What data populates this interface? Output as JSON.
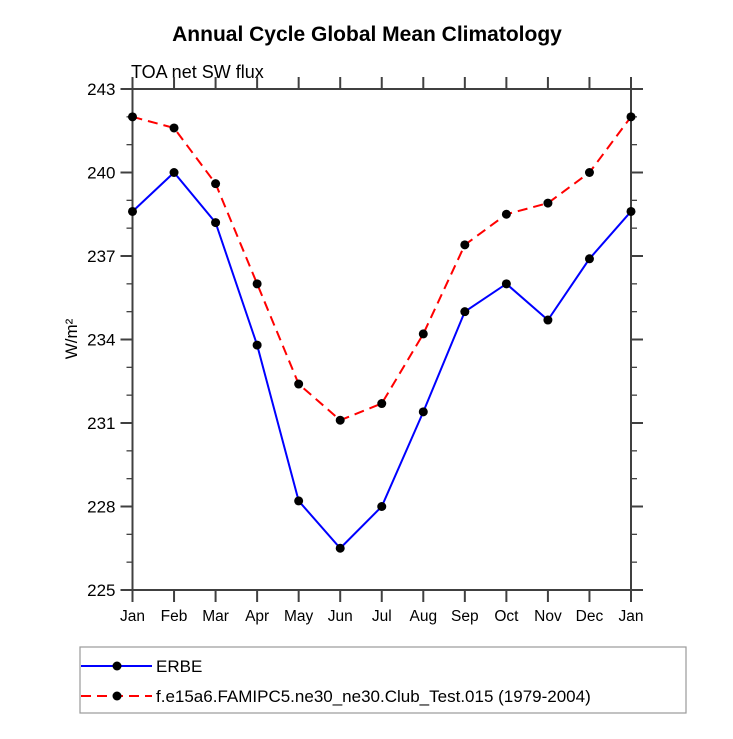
{
  "chart_data": {
    "type": "line",
    "title": "Annual Cycle Global Mean Climatology",
    "subtitle": "TOA net SW flux",
    "ylabel": "W/m²",
    "xlabel": "",
    "categories": [
      "Jan",
      "Feb",
      "Mar",
      "Apr",
      "May",
      "Jun",
      "Jul",
      "Aug",
      "Sep",
      "Oct",
      "Nov",
      "Dec",
      "Jan"
    ],
    "ylim": [
      225,
      243
    ],
    "yticks": [
      225,
      228,
      231,
      234,
      237,
      240,
      243
    ],
    "ytick_minor_step": 1,
    "grid": false,
    "legend_position": "bottom-left",
    "axis_color": "#404040",
    "marker_color": "#000000",
    "series": [
      {
        "name": "ERBE",
        "color": "#0000ff",
        "style": "solid",
        "marker": "circle",
        "values": [
          238.6,
          240.0,
          238.2,
          233.8,
          228.2,
          226.5,
          228.0,
          231.4,
          235.0,
          236.0,
          234.7,
          236.9,
          238.6
        ]
      },
      {
        "name": "f.e15a6.FAMIPC5.ne30_ne30.Club_Test.015 (1979-2004)",
        "color": "#ff0000",
        "style": "dashed",
        "marker": "circle",
        "values": [
          242.0,
          241.6,
          239.6,
          236.0,
          232.4,
          231.1,
          231.7,
          234.2,
          237.4,
          238.5,
          238.9,
          240.0,
          242.0
        ]
      }
    ]
  }
}
